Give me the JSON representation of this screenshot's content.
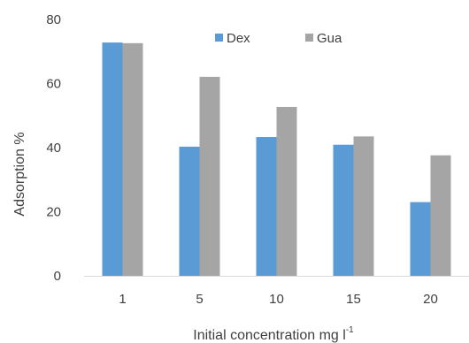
{
  "chart_data": {
    "type": "bar",
    "categories": [
      "1",
      "5",
      "10",
      "15",
      "20"
    ],
    "series": [
      {
        "name": "Dex",
        "values": [
          72.8,
          40.3,
          43.3,
          40.9,
          23.0
        ],
        "color": "#5b9bd5"
      },
      {
        "name": "Gua",
        "values": [
          72.6,
          62.1,
          52.7,
          43.5,
          37.6
        ],
        "color": "#a5a5a5"
      }
    ],
    "title": "",
    "xlabel_base": "Initial concentration mg l",
    "xlabel_sup": "-1",
    "ylabel": "Adsorption %",
    "ylim": [
      0,
      80
    ],
    "yticks": [
      "0",
      "20",
      "40",
      "60",
      "80"
    ],
    "grid": false,
    "legend_position": "top"
  }
}
